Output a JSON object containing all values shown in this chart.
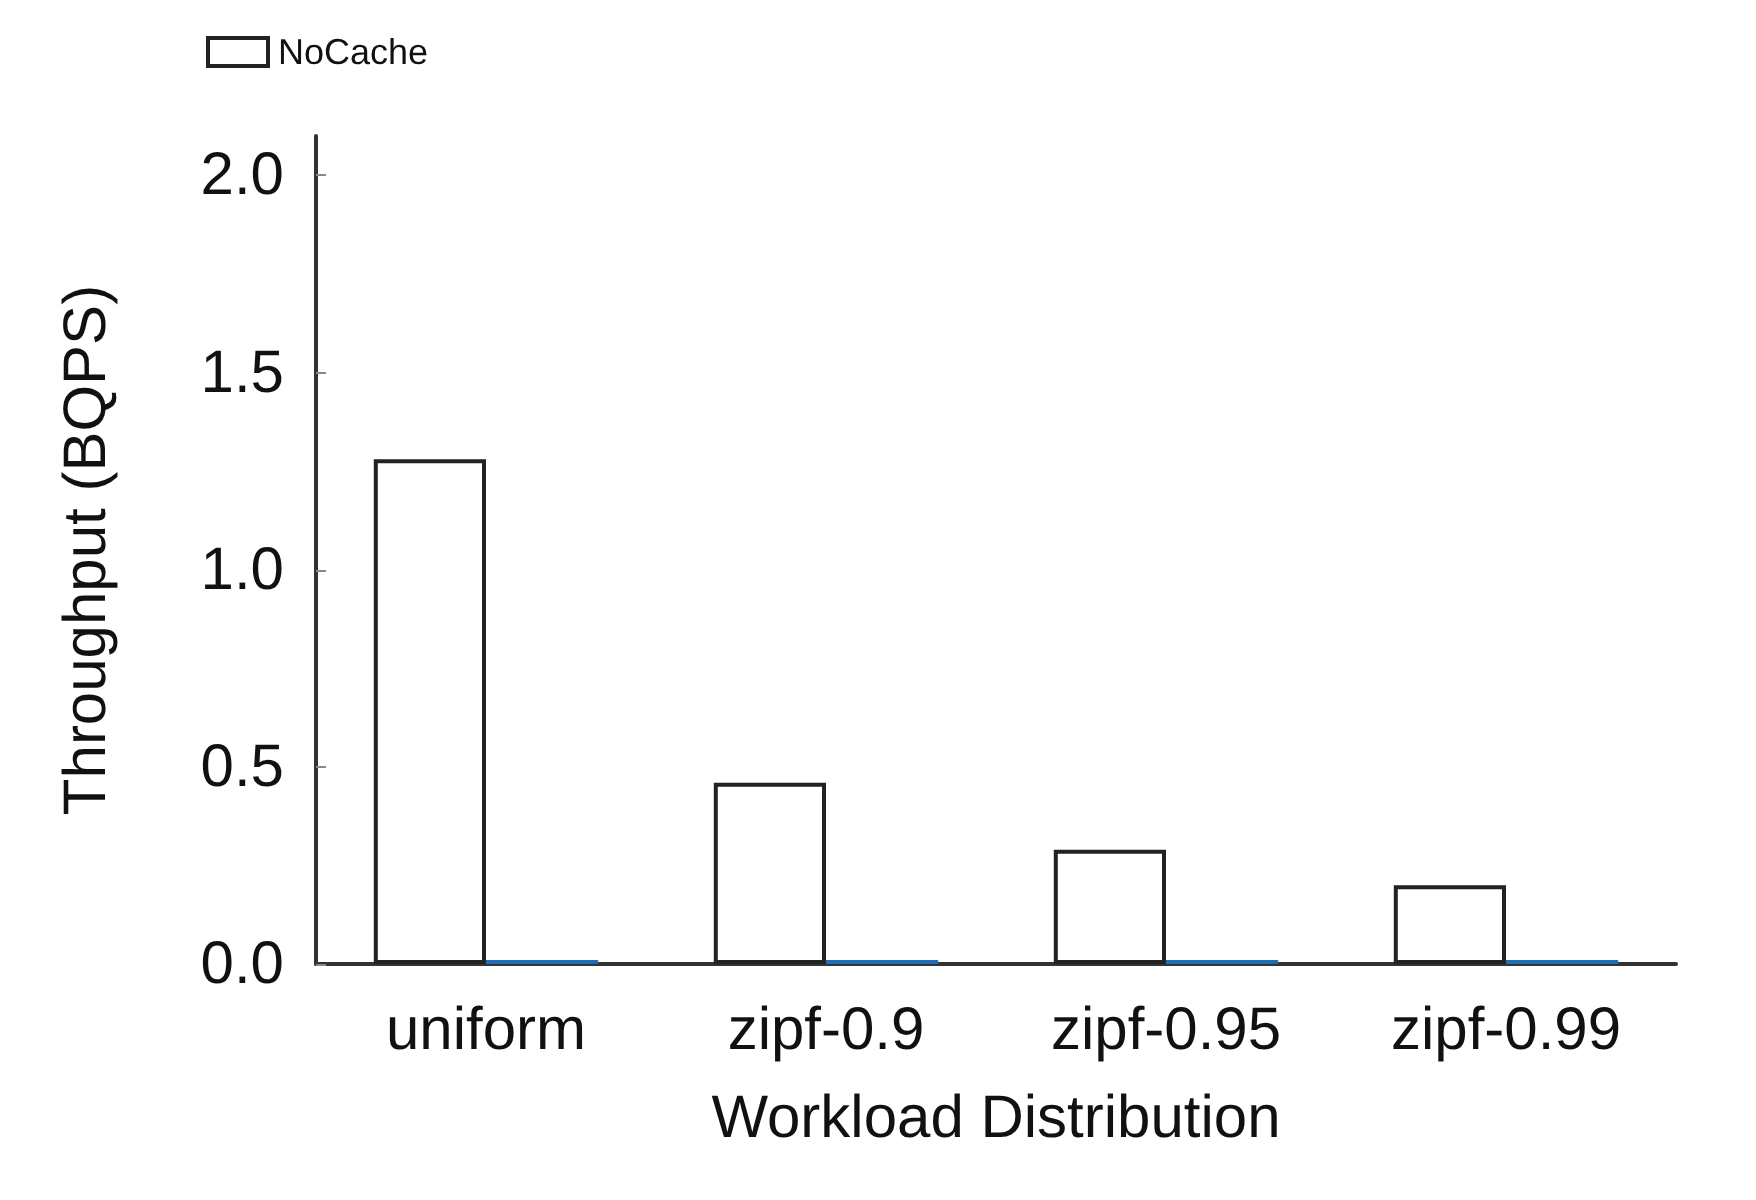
{
  "chart_data": {
    "type": "bar",
    "xlabel": "Workload Distribution",
    "ylabel": "Throughput (BQPS)",
    "categories": [
      "uniform",
      "zipf-0.9",
      "zipf-0.95",
      "zipf-0.99"
    ],
    "series": [
      {
        "name": "NoCache",
        "color": "#ffffff",
        "values": [
          1.28,
          0.46,
          0.29,
          0.2
        ]
      },
      {
        "color": "#1f6fb4",
        "values": [
          0.01,
          0.01,
          0.01,
          0.01
        ]
      }
    ],
    "ylim": [
      0,
      2.1
    ],
    "yticks": [
      {
        "value": 0,
        "label": "0.0"
      },
      0.5,
      {
        "value": 1,
        "label": "1.0"
      },
      1.5,
      {
        "value": 2,
        "label": "2.0"
      }
    ],
    "grid": false,
    "legend": "top left"
  }
}
